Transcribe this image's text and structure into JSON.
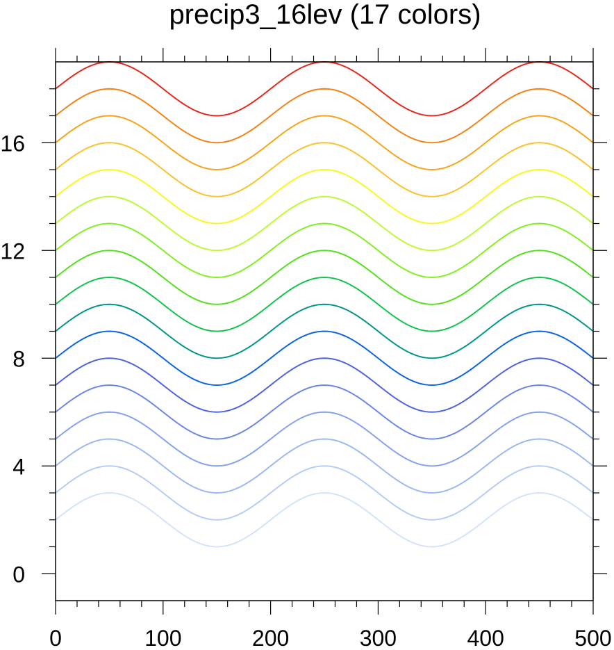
{
  "chart_data": {
    "type": "line",
    "title": "precip3_16lev (17 colors)",
    "xlabel": "",
    "ylabel": "",
    "xlim": [
      0,
      500
    ],
    "ylim": [
      -1,
      19
    ],
    "xticks": [
      0,
      100,
      200,
      300,
      400,
      500
    ],
    "yticks": [
      0,
      4,
      8,
      12,
      16
    ],
    "grid": false,
    "legend": "none",
    "curve": {
      "function": "offset + sin(2*pi*x/200)",
      "x_start": 0,
      "x_end": 500,
      "period": 200,
      "amplitude": 1
    },
    "series": [
      {
        "offset": 2,
        "color": "#d2e3fa"
      },
      {
        "offset": 3,
        "color": "#b4ccf7"
      },
      {
        "offset": 4,
        "color": "#9bb8f2"
      },
      {
        "offset": 5,
        "color": "#84a2ee"
      },
      {
        "offset": 6,
        "color": "#6a87e8"
      },
      {
        "offset": 7,
        "color": "#4e63e0"
      },
      {
        "offset": 8,
        "color": "#0a64e6"
      },
      {
        "offset": 9,
        "color": "#009688"
      },
      {
        "offset": 10,
        "color": "#12c34c"
      },
      {
        "offset": 11,
        "color": "#54e01a"
      },
      {
        "offset": 12,
        "color": "#82f01e"
      },
      {
        "offset": 13,
        "color": "#bcfa32"
      },
      {
        "offset": 14,
        "color": "#f8f81e"
      },
      {
        "offset": 15,
        "color": "#fac22a"
      },
      {
        "offset": 16,
        "color": "#f7a418"
      },
      {
        "offset": 17,
        "color": "#f58214"
      },
      {
        "offset": 18,
        "color": "#e6271c"
      }
    ]
  }
}
